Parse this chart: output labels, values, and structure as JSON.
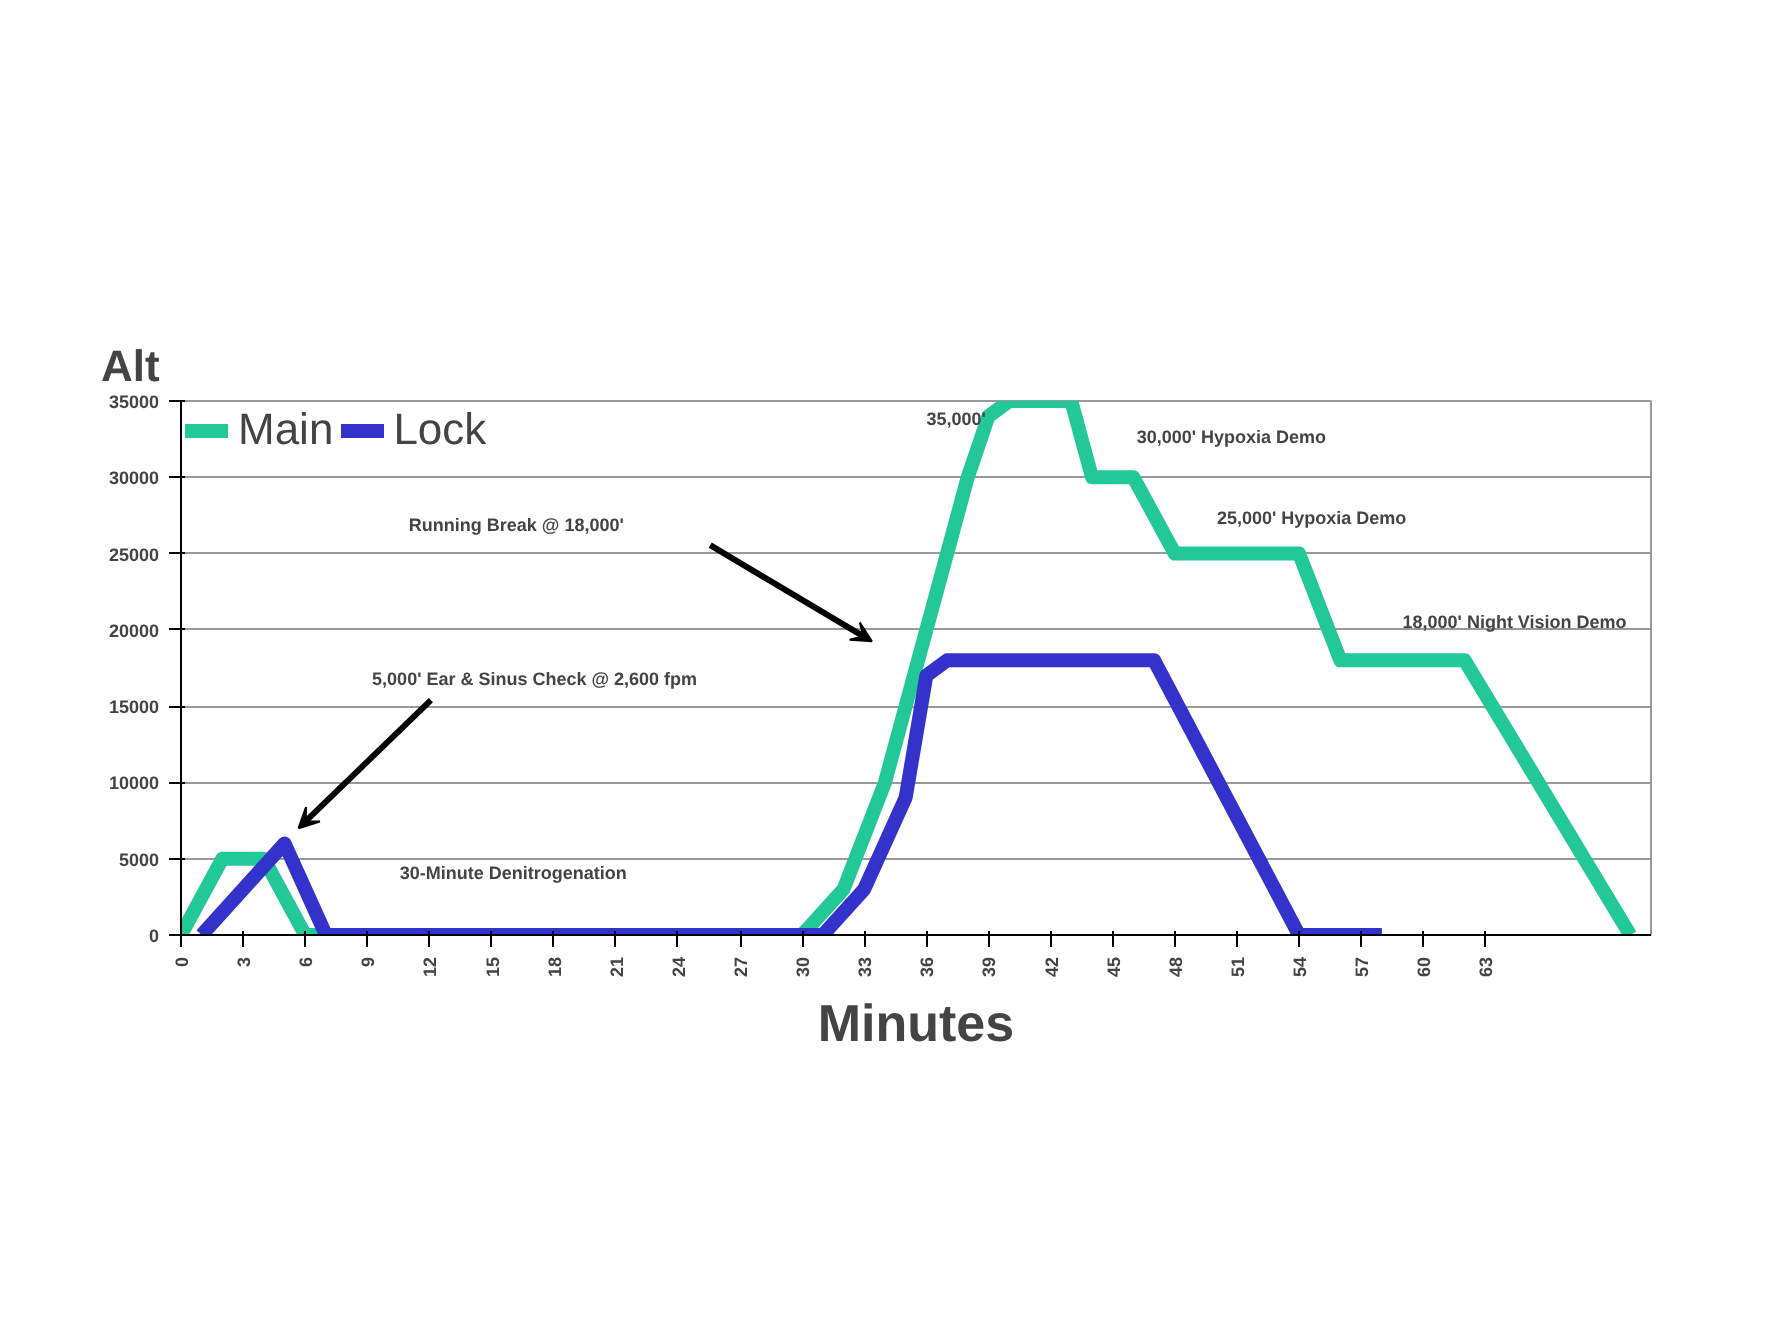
{
  "chart_data": {
    "type": "line",
    "xlabel": "Minutes",
    "ylabel": "Alt",
    "xlim": [
      0,
      71
    ],
    "xticks": [
      0,
      3,
      6,
      9,
      12,
      15,
      18,
      21,
      24,
      27,
      30,
      33,
      36,
      39,
      42,
      45,
      48,
      51,
      54,
      57,
      60,
      63
    ],
    "ylim": [
      0,
      35000
    ],
    "yticks": [
      0,
      5000,
      10000,
      15000,
      20000,
      25000,
      30000,
      35000
    ],
    "grid": "y",
    "legend": "top left",
    "marker": "none",
    "line_style": "solid",
    "series": [
      {
        "name": "Main",
        "color": "#22c896",
        "x": [
          0,
          2,
          4,
          6,
          30,
          32,
          34,
          36,
          38,
          39,
          40,
          43,
          44,
          46,
          48,
          54,
          56,
          62,
          70
        ],
        "values": [
          0,
          5000,
          5000,
          0,
          0,
          3000,
          10000,
          20000,
          30000,
          34000,
          35000,
          35000,
          30000,
          30000,
          25000,
          25000,
          18000,
          18000,
          0
        ]
      },
      {
        "name": "Lock",
        "color": "#3333cc",
        "x": [
          1,
          5,
          7,
          31,
          33,
          35,
          36,
          37,
          47,
          54,
          58
        ],
        "values": [
          0,
          6000,
          0,
          0,
          3000,
          9000,
          17000,
          18000,
          18000,
          0,
          0
        ]
      }
    ],
    "annotations": [
      "5,000' Ear & Sinus Check @ 2,600 fpm",
      {
        "text": "30-Minute Denitrogenation",
        "x": 18,
        "y": 0
      },
      "Running Break @ 18,000'",
      {
        "text": "35,000'",
        "x": 41,
        "y": 35000
      },
      {
        "text": "30,000' Hypoxia Demo",
        "x": 45,
        "y": 30000
      },
      {
        "text": "25,000' Hypoxia Demo",
        "x": 51,
        "y": 25000
      },
      {
        "text": "18,000' Night Vision Demo",
        "x": 59,
        "y": 18000
      }
    ]
  }
}
